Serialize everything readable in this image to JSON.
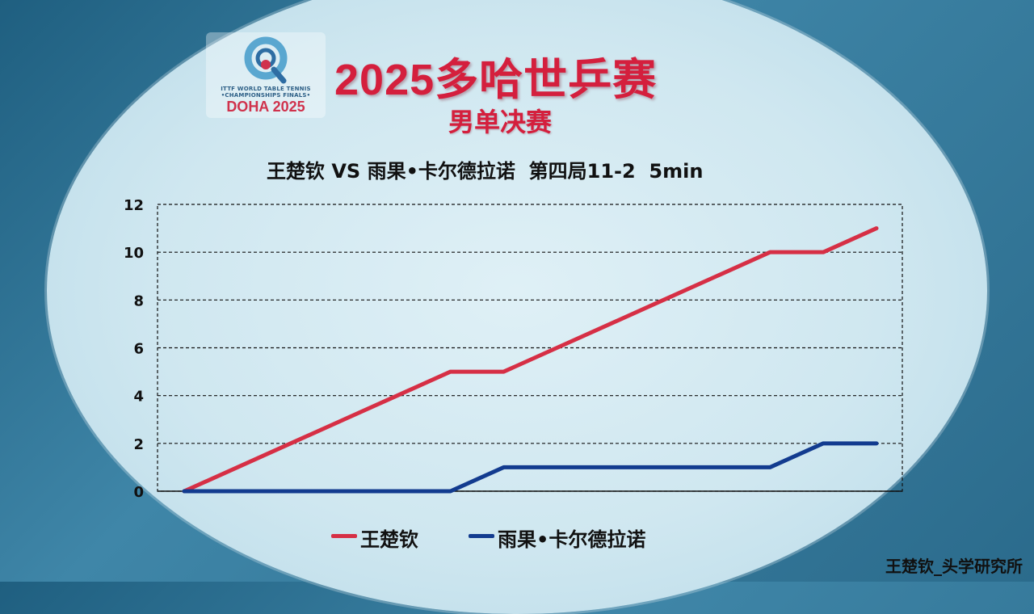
{
  "logo": {
    "line1": "ITTF WORLD TABLE TENNIS",
    "line2": "•CHAMPIONSHIPS FINALS•",
    "line3": "DOHA 2025"
  },
  "header": {
    "title": "2025多哈世乒赛",
    "subtitle": "男单决赛"
  },
  "colors": {
    "accent": "#d41f3d",
    "series1": "#d62f45",
    "series2": "#123b8f"
  },
  "watermark": "王楚钦_头学研究所",
  "chart_data": {
    "type": "line",
    "title": "王楚钦 VS 雨果•卡尔德拉诺  第四局11-2  5min",
    "x": [
      1,
      2,
      3,
      4,
      5,
      6,
      7,
      8,
      9,
      10,
      11,
      12,
      13,
      14
    ],
    "ylim": [
      0,
      12
    ],
    "y_ticks": [
      0,
      2,
      4,
      6,
      8,
      10,
      12
    ],
    "grid": true,
    "legend_position": "bottom",
    "series": [
      {
        "name": "王楚钦",
        "color": "#d62f45",
        "values": [
          0,
          1,
          2,
          3,
          4,
          5,
          5,
          6,
          7,
          8,
          9,
          10,
          10,
          11
        ]
      },
      {
        "name": "雨果•卡尔德拉诺",
        "color": "#123b8f",
        "values": [
          0,
          0,
          0,
          0,
          0,
          0,
          1,
          1,
          1,
          1,
          1,
          1,
          2,
          2
        ]
      }
    ]
  }
}
